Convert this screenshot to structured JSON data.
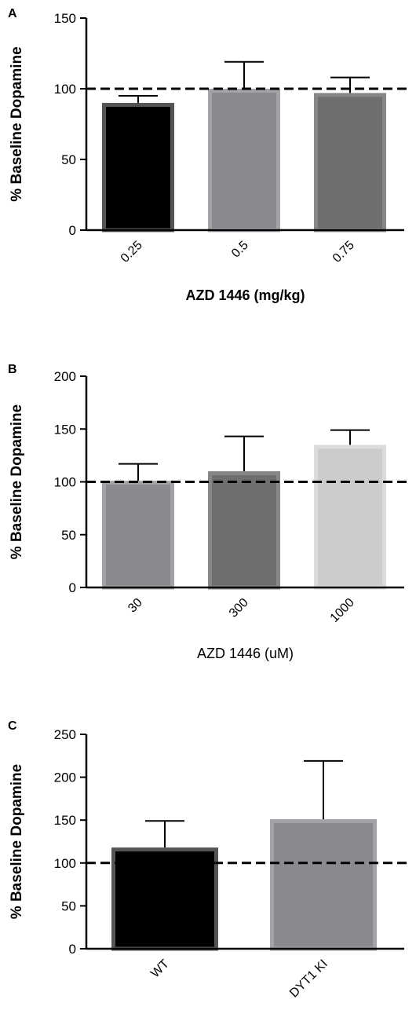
{
  "chart_data": [
    {
      "panel_label": "A",
      "type": "bar",
      "categories": [
        "0.25",
        "0.5",
        "0.75"
      ],
      "values": [
        90,
        100,
        97
      ],
      "error_upper": [
        95,
        119,
        108
      ],
      "bar_fill": [
        "#000000",
        "#8a8a8e",
        "#6e6e6e"
      ],
      "bar_edge": [
        "#555555",
        "#a3a3a7",
        "#878787"
      ],
      "ylabel": "% Baseline Dopamine",
      "xlabel": "AZD 1446 (mg/kg)",
      "xlabel_bold": true,
      "ylim": [
        0,
        150
      ],
      "yticks": [
        0,
        50,
        100,
        150
      ],
      "baseline": 100,
      "tick_label_rotation": -45,
      "grid": false
    },
    {
      "panel_label": "B",
      "type": "bar",
      "categories": [
        "30",
        "300",
        "1000"
      ],
      "values": [
        101,
        110,
        135
      ],
      "error_upper": [
        117,
        143,
        149
      ],
      "bar_fill": [
        "#8a8a8e",
        "#6e6e6e",
        "#cccccc"
      ],
      "bar_edge": [
        "#a3a3a7",
        "#878787",
        "#dcdcdc"
      ],
      "ylabel": "% Baseline Dopamine",
      "xlabel": "AZD 1446 (uM)",
      "xlabel_bold": false,
      "ylim": [
        0,
        200
      ],
      "yticks": [
        0,
        50,
        100,
        150,
        200
      ],
      "baseline": 100,
      "tick_label_rotation": -45,
      "grid": false
    },
    {
      "panel_label": "C",
      "type": "bar",
      "categories": [
        "WT",
        "DYT1 KI"
      ],
      "values": [
        118,
        151
      ],
      "error_upper": [
        149,
        219
      ],
      "bar_fill": [
        "#000000",
        "#8a8a8e"
      ],
      "bar_edge": [
        "#555555",
        "#a3a3a7"
      ],
      "ylabel": "% Baseline Dopamine",
      "xlabel": "",
      "xlabel_bold": false,
      "ylim": [
        0,
        250
      ],
      "yticks": [
        0,
        50,
        100,
        150,
        200,
        250
      ],
      "baseline": 100,
      "tick_label_rotation": -45,
      "grid": false
    }
  ]
}
